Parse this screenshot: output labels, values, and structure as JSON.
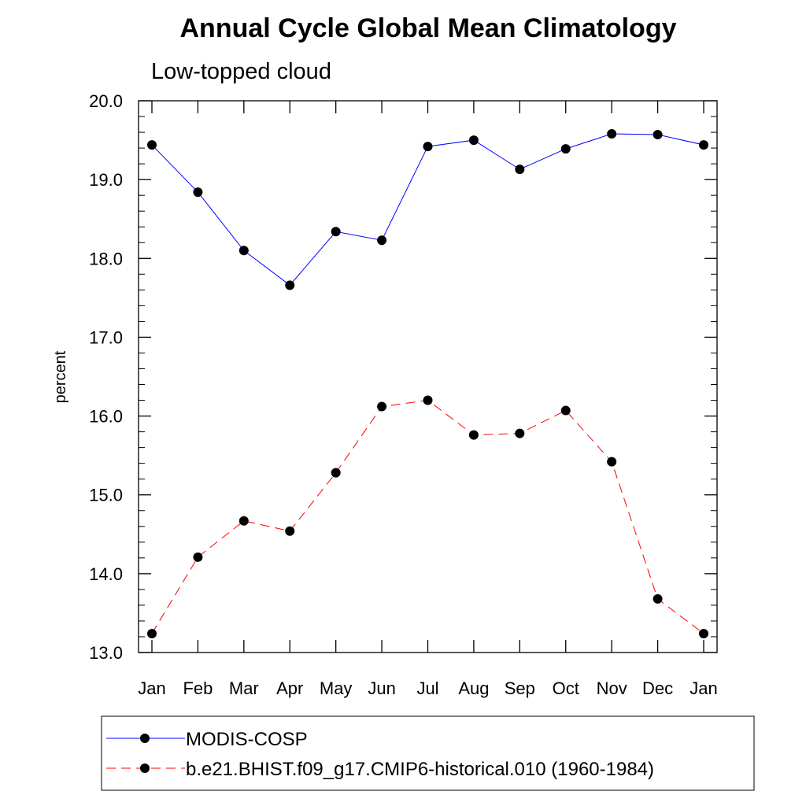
{
  "chart_data": {
    "type": "line",
    "title": "Annual Cycle Global Mean Climatology",
    "subtitle": "Low-topped cloud",
    "xlabel": "",
    "ylabel": "percent",
    "categories": [
      "Jan",
      "Feb",
      "Mar",
      "Apr",
      "May",
      "Jun",
      "Jul",
      "Aug",
      "Sep",
      "Oct",
      "Nov",
      "Dec",
      "Jan"
    ],
    "ylim": [
      13.0,
      20.0
    ],
    "yticks": [
      "13.0",
      "14.0",
      "15.0",
      "16.0",
      "17.0",
      "18.0",
      "19.0",
      "20.0"
    ],
    "grid": false,
    "legend_position": "bottom",
    "series": [
      {
        "name": "MODIS-COSP",
        "color": "#0000ff",
        "line_style": "solid",
        "marker": "circle",
        "values": [
          19.44,
          18.84,
          18.1,
          17.66,
          18.34,
          18.23,
          19.42,
          19.5,
          19.13,
          19.39,
          19.58,
          19.57,
          19.44
        ]
      },
      {
        "name": "b.e21.BHIST.f09_g17.CMIP6-historical.010 (1960-1984)",
        "color": "#ff0000",
        "line_style": "dashed",
        "marker": "circle",
        "values": [
          13.24,
          14.21,
          14.67,
          14.54,
          15.28,
          16.12,
          16.2,
          15.76,
          15.78,
          16.07,
          15.42,
          13.68,
          13.24
        ]
      }
    ]
  }
}
